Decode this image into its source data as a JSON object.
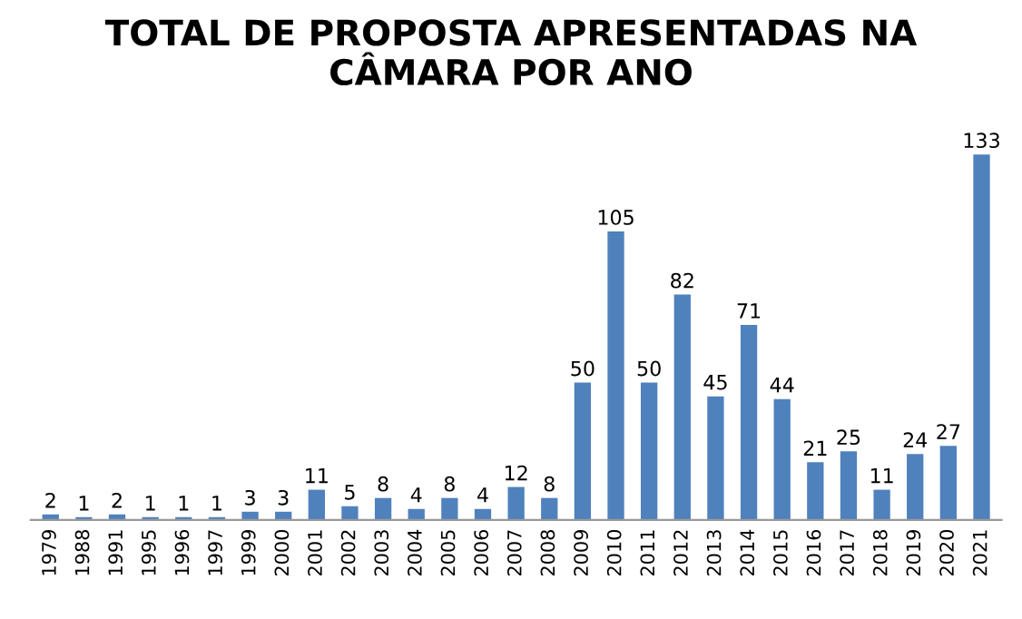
{
  "chart_data": {
    "type": "bar",
    "title": "TOTAL DE PROPOSTA APRESENTADAS NA\nCÂMARA POR ANO",
    "categories": [
      "1979",
      "1988",
      "1991",
      "1995",
      "1996",
      "1997",
      "1999",
      "2000",
      "2001",
      "2002",
      "2003",
      "2004",
      "2005",
      "2006",
      "2007",
      "2008",
      "2009",
      "2010",
      "2011",
      "2012",
      "2013",
      "2014",
      "2015",
      "2016",
      "2017",
      "2018",
      "2019",
      "2020",
      "2021"
    ],
    "values": [
      2,
      1,
      2,
      1,
      1,
      1,
      3,
      3,
      11,
      5,
      8,
      4,
      8,
      4,
      12,
      8,
      50,
      105,
      50,
      82,
      45,
      71,
      44,
      21,
      25,
      11,
      24,
      27,
      133
    ],
    "color": "#4f81bd",
    "data_labels": true,
    "grid": false,
    "legend": false
  }
}
